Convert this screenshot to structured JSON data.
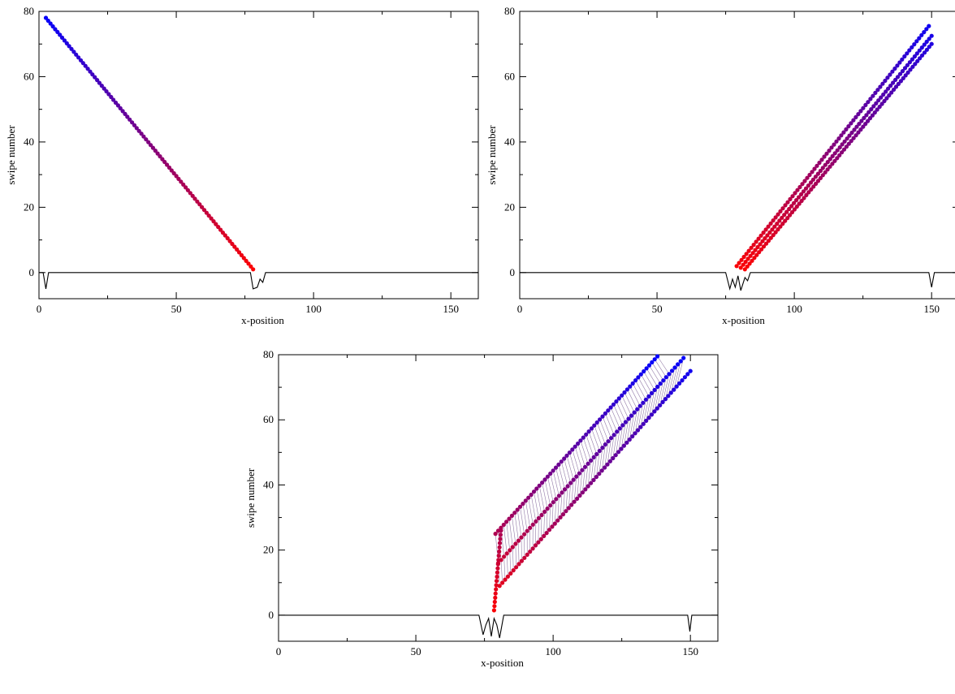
{
  "chart_data": [
    {
      "type": "scatter",
      "xlabel": "x-position",
      "ylabel": "swipe number",
      "xlim": [
        0,
        160
      ],
      "ylim": [
        -8,
        80
      ],
      "xticks": [
        0,
        50,
        100,
        150
      ],
      "yticks": [
        0,
        20,
        40,
        60,
        80
      ],
      "color_gradient": {
        "low": "#ff0000",
        "high": "#0000ff",
        "by": "swipe number"
      },
      "series": [
        {
          "x_start": 78,
          "x_end": 2.5,
          "y_start": 1,
          "y_end": 78,
          "n": 90
        }
      ],
      "potential": [
        [
          0,
          0
        ],
        [
          1.5,
          0
        ],
        [
          2.5,
          -5
        ],
        [
          3.5,
          0
        ],
        [
          77,
          0
        ],
        [
          78,
          -5
        ],
        [
          79.5,
          -4.5
        ],
        [
          80.5,
          -2
        ],
        [
          81.5,
          -3
        ],
        [
          82.5,
          0
        ],
        [
          160,
          0
        ]
      ]
    },
    {
      "type": "scatter",
      "xlabel": "x-position",
      "ylabel": "swipe number",
      "xlim": [
        0,
        160
      ],
      "ylim": [
        -8,
        80
      ],
      "xticks": [
        0,
        50,
        100,
        150
      ],
      "yticks": [
        0,
        20,
        40,
        60,
        80
      ],
      "color_gradient": {
        "low": "#ff0000",
        "high": "#0000ff",
        "by": "swipe number"
      },
      "series": [
        {
          "x_start": 79,
          "x_end": 149,
          "y_start": 2,
          "y_end": 75.5,
          "n": 80
        },
        {
          "x_start": 80.5,
          "x_end": 150,
          "y_start": 1.5,
          "y_end": 72.5,
          "n": 80
        },
        {
          "x_start": 82,
          "x_end": 150,
          "y_start": 1,
          "y_end": 70,
          "n": 80
        }
      ],
      "potential": [
        [
          0,
          0
        ],
        [
          75,
          0
        ],
        [
          76.5,
          -5
        ],
        [
          77.5,
          -2
        ],
        [
          78.5,
          -4.5
        ],
        [
          79.5,
          -1
        ],
        [
          80.5,
          -5.5
        ],
        [
          82,
          -1.5
        ],
        [
          83,
          -2.5
        ],
        [
          84,
          0
        ],
        [
          149,
          0
        ],
        [
          150,
          -4.5
        ],
        [
          151,
          0
        ],
        [
          160,
          0
        ]
      ]
    },
    {
      "type": "scatter",
      "xlabel": "x-position",
      "ylabel": "swipe number",
      "xlim": [
        0,
        160
      ],
      "ylim": [
        -8,
        80
      ],
      "xticks": [
        0,
        50,
        100,
        150
      ],
      "yticks": [
        0,
        20,
        40,
        60,
        80
      ],
      "color_gradient": {
        "low": "#ff0000",
        "high": "#0000ff",
        "by": "swipe number"
      },
      "series": [
        {
          "x_start": 79,
          "x_end": 138,
          "y_start": 25,
          "y_end": 79.5,
          "n": 60
        },
        {
          "x_start": 80,
          "x_end": 147.5,
          "y_start": 16,
          "y_end": 79,
          "n": 65
        },
        {
          "x_start": 80.5,
          "x_end": 150,
          "y_start": 9,
          "y_end": 75,
          "n": 70
        },
        {
          "x_start": 78.5,
          "x_end": 81,
          "y_start": 1.5,
          "y_end": 26,
          "n": 20
        }
      ],
      "potential": [
        [
          0,
          0
        ],
        [
          73,
          0
        ],
        [
          74.5,
          -6
        ],
        [
          75.5,
          -3
        ],
        [
          76.5,
          -1
        ],
        [
          77.5,
          -6.5
        ],
        [
          78.5,
          -1
        ],
        [
          79.5,
          -3
        ],
        [
          80.5,
          -7
        ],
        [
          82,
          0
        ],
        [
          149,
          0
        ],
        [
          149.8,
          -5
        ],
        [
          150.5,
          0
        ],
        [
          160,
          0
        ]
      ]
    }
  ]
}
